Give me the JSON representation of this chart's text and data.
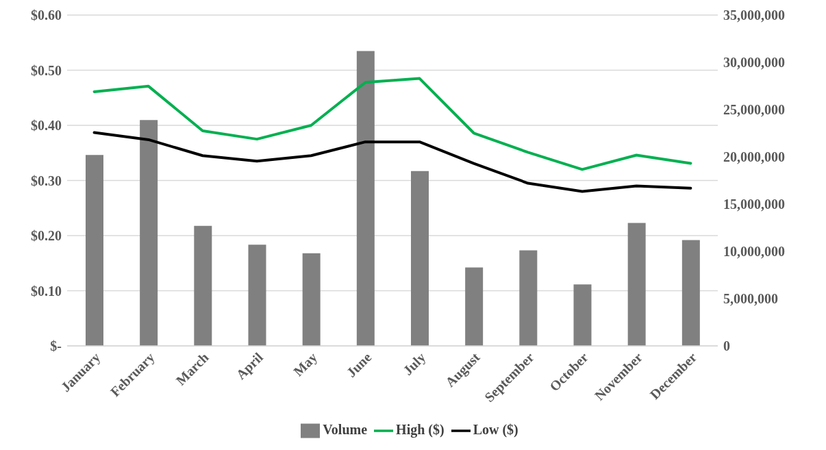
{
  "chart_data": {
    "type": "bar",
    "categories": [
      "January",
      "February",
      "March",
      "April",
      "May",
      "June",
      "July",
      "August",
      "September",
      "October",
      "November",
      "December"
    ],
    "series": [
      {
        "name": "Volume",
        "axis": "y2",
        "color": "#808080",
        "values": [
          20200000,
          23900000,
          12700000,
          10700000,
          9800000,
          31200000,
          18500000,
          8300000,
          10100000,
          6500000,
          13000000,
          11200000
        ]
      },
      {
        "name": "High ($)",
        "type": "line",
        "color": "#00b050",
        "values": [
          0.461,
          0.471,
          0.39,
          0.375,
          0.4,
          0.478,
          0.485,
          0.386,
          0.351,
          0.32,
          0.346,
          0.331
        ]
      },
      {
        "name": "Low ($)",
        "type": "line",
        "color": "#000000",
        "values": [
          0.387,
          0.374,
          0.345,
          0.335,
          0.345,
          0.37,
          0.37,
          0.331,
          0.295,
          0.28,
          0.29,
          0.286
        ]
      }
    ],
    "ylim": [
      0,
      0.6
    ],
    "yticks": [
      {
        "value": 0,
        "label": "$-"
      },
      {
        "value": 0.1,
        "label": "$0.10"
      },
      {
        "value": 0.2,
        "label": "$0.20"
      },
      {
        "value": 0.3,
        "label": "$0.30"
      },
      {
        "value": 0.4,
        "label": "$0.40"
      },
      {
        "value": 0.5,
        "label": "$0.50"
      },
      {
        "value": 0.6,
        "label": "$0.60"
      }
    ],
    "y2lim": [
      0,
      35000000
    ],
    "y2ticks": [
      0,
      {
        "value": 5000000,
        "label": "5,000,000"
      },
      {
        "value": 10000000,
        "label": "10,000,000"
      },
      {
        "value": 15000000,
        "label": "15,000,000"
      },
      {
        "value": 20000000,
        "label": "20,000,000"
      },
      {
        "value": 25000000,
        "label": "25,000,000"
      },
      {
        "value": 30000000,
        "label": "30,000,000"
      },
      {
        "value": 35000000,
        "label": "35,000,000"
      }
    ],
    "grid": "y",
    "legend": "bottom",
    "marker": "none",
    "line_style": "solid"
  }
}
